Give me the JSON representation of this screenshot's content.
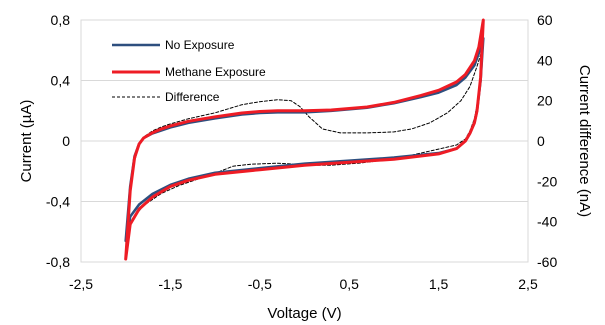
{
  "chart_data": {
    "type": "line",
    "title": "",
    "xlabel": "Voltage (V)",
    "ylabel": "Current (µA)",
    "y2label": "Current difference (nA)",
    "xlim": [
      -2.5,
      2.5
    ],
    "ylim": [
      -0.8,
      0.8
    ],
    "y2lim": [
      -60,
      60
    ],
    "xticks": [
      "-2,5",
      "-1,5",
      "-0,5",
      "0,5",
      "1,5",
      "2,5"
    ],
    "yticks": [
      "-0,8",
      "-0,4",
      "0",
      "0,4",
      "0,8"
    ],
    "y2ticks": [
      "-60",
      "-40",
      "-20",
      "0",
      "20",
      "40",
      "60"
    ],
    "grid": "horizontal",
    "legend_position": "top-left",
    "colors": {
      "no_exposure": "#2e4f7f",
      "methane": "#ee1c25",
      "difference": "#000000"
    },
    "series": [
      {
        "name": "No Exposure",
        "axis": "left",
        "style": "solid",
        "upper": [
          [
            -2.0,
            -0.66
          ],
          [
            -1.95,
            -0.3
          ],
          [
            -1.9,
            -0.1
          ],
          [
            -1.85,
            -0.02
          ],
          [
            -1.8,
            0.02
          ],
          [
            -1.7,
            0.05
          ],
          [
            -1.6,
            0.07
          ],
          [
            -1.5,
            0.09
          ],
          [
            -1.3,
            0.12
          ],
          [
            -1.0,
            0.15
          ],
          [
            -0.7,
            0.175
          ],
          [
            -0.5,
            0.185
          ],
          [
            -0.3,
            0.19
          ],
          [
            0.0,
            0.19
          ],
          [
            0.3,
            0.2
          ],
          [
            0.7,
            0.22
          ],
          [
            1.0,
            0.25
          ],
          [
            1.3,
            0.29
          ],
          [
            1.5,
            0.32
          ],
          [
            1.7,
            0.37
          ],
          [
            1.8,
            0.42
          ],
          [
            1.9,
            0.5
          ],
          [
            1.95,
            0.58
          ],
          [
            2.0,
            0.68
          ]
        ],
        "lower": [
          [
            2.0,
            0.68
          ],
          [
            1.97,
            0.4
          ],
          [
            1.93,
            0.2
          ],
          [
            1.9,
            0.12
          ],
          [
            1.85,
            0.05
          ],
          [
            1.8,
            0.0
          ],
          [
            1.7,
            -0.05
          ],
          [
            1.5,
            -0.08
          ],
          [
            1.0,
            -0.11
          ],
          [
            0.5,
            -0.13
          ],
          [
            0.0,
            -0.15
          ],
          [
            -0.5,
            -0.18
          ],
          [
            -1.0,
            -0.21
          ],
          [
            -1.3,
            -0.25
          ],
          [
            -1.5,
            -0.29
          ],
          [
            -1.7,
            -0.35
          ],
          [
            -1.85,
            -0.42
          ],
          [
            -1.95,
            -0.5
          ],
          [
            -2.0,
            -0.66
          ]
        ]
      },
      {
        "name": "Methane Exposure",
        "axis": "left",
        "style": "solid",
        "upper": [
          [
            -2.0,
            -0.78
          ],
          [
            -1.95,
            -0.33
          ],
          [
            -1.9,
            -0.11
          ],
          [
            -1.85,
            -0.02
          ],
          [
            -1.8,
            0.02
          ],
          [
            -1.7,
            0.055
          ],
          [
            -1.6,
            0.08
          ],
          [
            -1.5,
            0.1
          ],
          [
            -1.3,
            0.13
          ],
          [
            -1.0,
            0.16
          ],
          [
            -0.7,
            0.185
          ],
          [
            -0.5,
            0.195
          ],
          [
            -0.3,
            0.2
          ],
          [
            0.0,
            0.2
          ],
          [
            0.3,
            0.205
          ],
          [
            0.7,
            0.225
          ],
          [
            1.0,
            0.255
          ],
          [
            1.3,
            0.3
          ],
          [
            1.5,
            0.335
          ],
          [
            1.7,
            0.39
          ],
          [
            1.8,
            0.44
          ],
          [
            1.9,
            0.53
          ],
          [
            1.95,
            0.62
          ],
          [
            2.0,
            0.8
          ]
        ],
        "lower": [
          [
            2.0,
            0.8
          ],
          [
            1.97,
            0.42
          ],
          [
            1.93,
            0.2
          ],
          [
            1.9,
            0.12
          ],
          [
            1.85,
            0.05
          ],
          [
            1.8,
            0.0
          ],
          [
            1.7,
            -0.05
          ],
          [
            1.5,
            -0.085
          ],
          [
            1.0,
            -0.12
          ],
          [
            0.5,
            -0.14
          ],
          [
            0.0,
            -0.16
          ],
          [
            -0.5,
            -0.19
          ],
          [
            -1.0,
            -0.22
          ],
          [
            -1.3,
            -0.26
          ],
          [
            -1.5,
            -0.3
          ],
          [
            -1.7,
            -0.37
          ],
          [
            -1.85,
            -0.45
          ],
          [
            -1.95,
            -0.55
          ],
          [
            -2.0,
            -0.78
          ]
        ]
      },
      {
        "name": "Difference",
        "axis": "right",
        "style": "dashed",
        "upper": [
          [
            -2.0,
            -48
          ],
          [
            -1.95,
            -25
          ],
          [
            -1.9,
            -10
          ],
          [
            -1.85,
            -2
          ],
          [
            -1.8,
            2
          ],
          [
            -1.7,
            5
          ],
          [
            -1.6,
            7
          ],
          [
            -1.5,
            8.5
          ],
          [
            -1.3,
            11
          ],
          [
            -1.0,
            14
          ],
          [
            -0.7,
            18
          ],
          [
            -0.5,
            19.5
          ],
          [
            -0.3,
            20.5
          ],
          [
            -0.15,
            20
          ],
          [
            -0.05,
            17
          ],
          [
            0.05,
            12
          ],
          [
            0.2,
            6
          ],
          [
            0.4,
            4
          ],
          [
            0.7,
            4
          ],
          [
            1.0,
            4.5
          ],
          [
            1.2,
            6
          ],
          [
            1.4,
            9
          ],
          [
            1.6,
            14
          ],
          [
            1.75,
            20
          ],
          [
            1.85,
            27
          ],
          [
            1.93,
            37
          ],
          [
            2.0,
            47
          ]
        ],
        "lower": [
          [
            2.0,
            47
          ],
          [
            1.97,
            30
          ],
          [
            1.93,
            18
          ],
          [
            1.9,
            11
          ],
          [
            1.85,
            5
          ],
          [
            1.8,
            1
          ],
          [
            1.7,
            -2
          ],
          [
            1.5,
            -4
          ],
          [
            1.2,
            -7
          ],
          [
            1.0,
            -9
          ],
          [
            0.6,
            -11
          ],
          [
            0.3,
            -12
          ],
          [
            0.1,
            -12
          ],
          [
            -0.1,
            -11.5
          ],
          [
            -0.3,
            -11
          ],
          [
            -0.6,
            -11.5
          ],
          [
            -0.8,
            -12.5
          ],
          [
            -1.0,
            -16
          ],
          [
            -1.2,
            -19
          ],
          [
            -1.4,
            -22
          ],
          [
            -1.6,
            -26
          ],
          [
            -1.8,
            -32
          ],
          [
            -1.95,
            -40
          ],
          [
            -2.0,
            -48
          ]
        ]
      }
    ]
  }
}
